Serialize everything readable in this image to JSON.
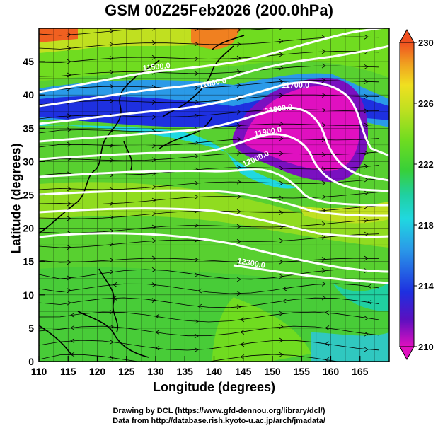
{
  "title": "GSM 00Z25Feb2026 (200.0hPa)",
  "axes": {
    "xlabel": "Longitude (degrees)",
    "ylabel": "Latitude  (degrees)",
    "x_ticks": [
      "110",
      "115",
      "120",
      "125",
      "130",
      "135",
      "140",
      "145",
      "150",
      "155",
      "160",
      "165"
    ],
    "y_ticks": [
      "0",
      "5",
      "10",
      "15",
      "20",
      "25",
      "30",
      "35",
      "40",
      "45"
    ],
    "xlim": [
      110,
      170
    ],
    "ylim": [
      0,
      50
    ]
  },
  "colorbar": {
    "labels": [
      "230",
      "226",
      "222",
      "218",
      "214",
      "210"
    ],
    "range": [
      210,
      230
    ],
    "colors": [
      "#e010c0",
      "#5a10c0",
      "#1e30e0",
      "#2a9ae8",
      "#20d8e0",
      "#20d0a0",
      "#38d038",
      "#70dc20",
      "#c0e020",
      "#f0e020",
      "#f0a020",
      "#f05020"
    ]
  },
  "contours": [
    {
      "label": "11500.0"
    },
    {
      "label": "11600.0"
    },
    {
      "label": "11700.0"
    },
    {
      "label": "11800.0"
    },
    {
      "label": "11900.0"
    },
    {
      "label": "12000.0"
    },
    {
      "label": "12300.0"
    }
  ],
  "credits": {
    "line1": "Drawing by DCL (https://www.gfd-dennou.org/library/dcl/)",
    "line2": "Data from http://database.rish.kyoto-u.ac.jp/arch/jmadata/"
  }
}
